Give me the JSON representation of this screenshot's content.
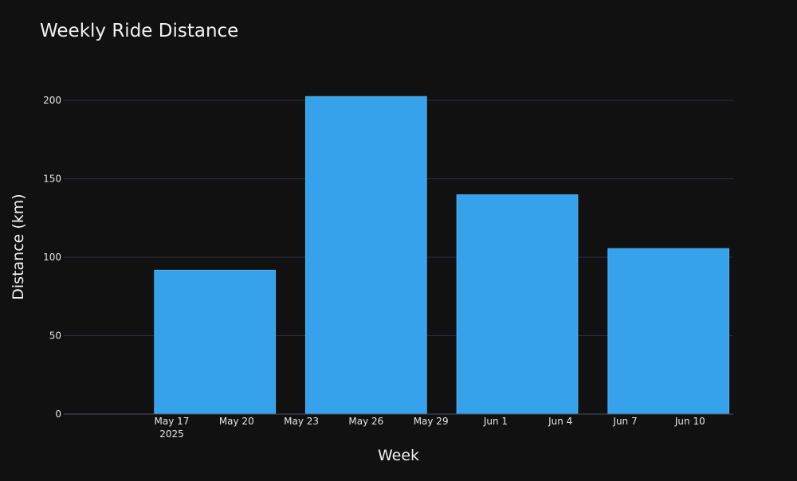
{
  "chart_data": {
    "type": "bar",
    "title": "Weekly Ride Distance",
    "xlabel": "Week",
    "ylabel": "Distance (km)",
    "x_type": "date",
    "x_range": [
      "2025-05-12",
      "2025-06-12"
    ],
    "categories": [
      "2025-05-19",
      "2025-05-26",
      "2025-06-02",
      "2025-06-09"
    ],
    "values": [
      91.7,
      202.4,
      139.8,
      105.5
    ],
    "ylim": [
      0,
      220
    ],
    "y_ticks": [
      0,
      50,
      100,
      150,
      200
    ],
    "x_ticks": [
      {
        "date": "2025-05-17",
        "label": "May 17",
        "sublabel": "2025"
      },
      {
        "date": "2025-05-20",
        "label": "May 20"
      },
      {
        "date": "2025-05-23",
        "label": "May 23"
      },
      {
        "date": "2025-05-26",
        "label": "May 26"
      },
      {
        "date": "2025-05-29",
        "label": "May 29"
      },
      {
        "date": "2025-06-01",
        "label": "Jun 1"
      },
      {
        "date": "2025-06-04",
        "label": "Jun 4"
      },
      {
        "date": "2025-06-07",
        "label": "Jun 7"
      },
      {
        "date": "2025-06-10",
        "label": "Jun 10"
      }
    ],
    "grid": true,
    "legend": false
  },
  "colors": {
    "background": "#111111",
    "bar_fill": "#36A2EB",
    "bar_stroke": "#4fb0f0",
    "grid": "#2c3140",
    "axis_line": "#4a5060",
    "tick_text": "#e6e6e6",
    "title_text": "#f2f2f2",
    "label_text": "#f2f2f2"
  }
}
